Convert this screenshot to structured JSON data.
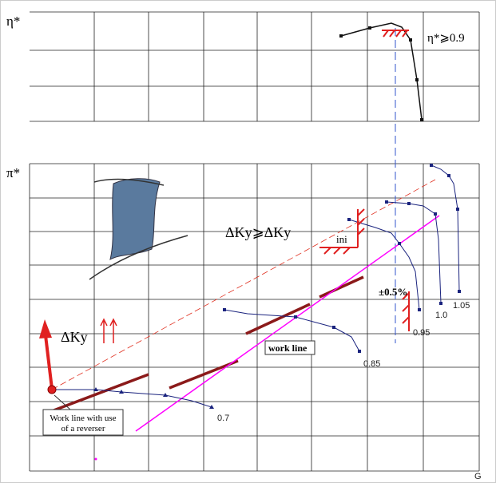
{
  "axes": {
    "top_label": "η*",
    "bottom_label": "π*",
    "x_label": "G"
  },
  "annotations": {
    "efficiency_limit": "η*⩾0.9",
    "stall_margin": "ΔKy⩾ΔKy",
    "stall_margin_subscript": "ini",
    "tolerance": "±0.5%",
    "delta_ky": "ΔKy",
    "work_line": "work line",
    "reverser_line": [
      "Work line with use",
      "of a reverser"
    ]
  },
  "speed_lines": [
    "0.7",
    "0.85",
    "0.95",
    "1.0",
    "1.05"
  ]
}
